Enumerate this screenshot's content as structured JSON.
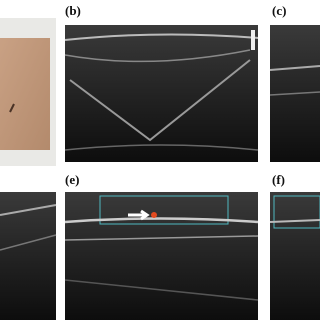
{
  "panels": [
    {
      "label": "(b)"
    },
    {
      "label": "(c)"
    },
    {
      "label": "(e)"
    },
    {
      "label": "(f)"
    }
  ]
}
